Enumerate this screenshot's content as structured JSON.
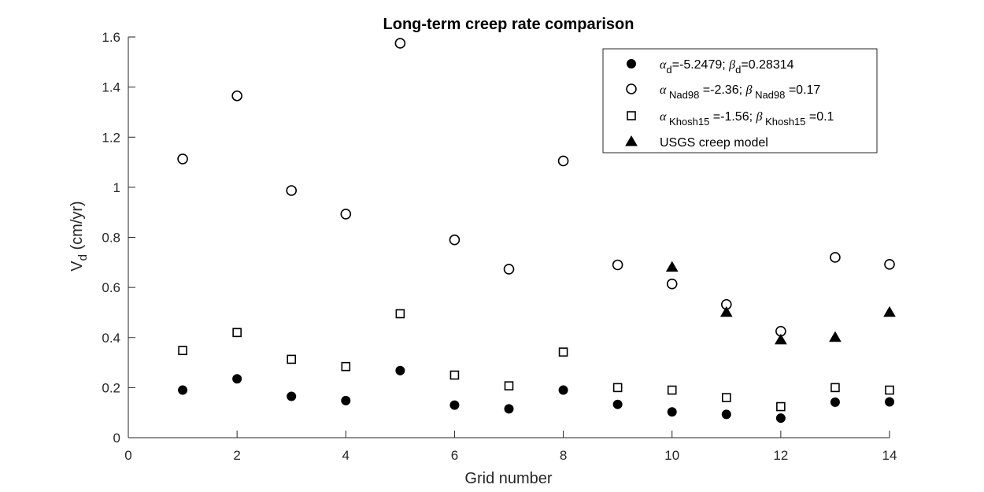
{
  "chart_data": {
    "type": "scatter",
    "title": "Long-term creep rate comparison",
    "xlabel": "Grid number",
    "ylabel": {
      "main": "V",
      "sub": "d",
      "suffix": " (cm/yr)"
    },
    "xlim": [
      0,
      14
    ],
    "ylim": [
      0,
      1.6
    ],
    "xticks": [
      0,
      2,
      4,
      6,
      8,
      10,
      12,
      14
    ],
    "yticks": [
      0,
      0.2,
      0.4,
      0.6,
      0.8,
      1,
      1.2,
      1.4,
      1.6
    ],
    "xtick_labels": [
      "0",
      "2",
      "4",
      "6",
      "8",
      "10",
      "12",
      "14"
    ],
    "ytick_labels": [
      "0",
      "0.2",
      "0.4",
      "0.6",
      "0.8",
      "1",
      "1.2",
      "1.4",
      "1.6"
    ],
    "grid": false,
    "legend_position": "top-right",
    "series": [
      {
        "name": "αd=-5.2479; βd=0.28314",
        "legend_parts": [
          {
            "t": "α",
            "style": "greek"
          },
          {
            "t": "d",
            "style": "sub"
          },
          {
            "t": "=-5.2479; ",
            "style": "normal"
          },
          {
            "t": "β",
            "style": "greek"
          },
          {
            "t": "d",
            "style": "sub"
          },
          {
            "t": "=0.28314",
            "style": "normal"
          }
        ],
        "marker": "filled-circle",
        "x": [
          1,
          2,
          3,
          4,
          5,
          6,
          7,
          8,
          9,
          10,
          11,
          12,
          13,
          14
        ],
        "y": [
          0.19,
          0.235,
          0.165,
          0.148,
          0.268,
          0.13,
          0.115,
          0.19,
          0.133,
          0.103,
          0.093,
          0.078,
          0.142,
          0.143
        ]
      },
      {
        "name": "α Nad98 =-2.36; β Nad98 =0.17",
        "legend_parts": [
          {
            "t": "α",
            "style": "greek"
          },
          {
            "t": " Nad98",
            "style": "sub"
          },
          {
            "t": " =-2.36; ",
            "style": "normal"
          },
          {
            "t": "β",
            "style": "greek"
          },
          {
            "t": " Nad98",
            "style": "sub"
          },
          {
            "t": " =0.17",
            "style": "normal"
          }
        ],
        "marker": "open-circle",
        "x": [
          1,
          2,
          3,
          4,
          5,
          6,
          7,
          8,
          9,
          10,
          11,
          12,
          13,
          14
        ],
        "y": [
          1.113,
          1.365,
          0.987,
          0.893,
          1.575,
          0.79,
          0.673,
          1.105,
          0.69,
          0.614,
          0.532,
          0.425,
          0.72,
          0.692
        ]
      },
      {
        "name": "α Khosh15 =-1.56; β Khosh15 =0.1",
        "legend_parts": [
          {
            "t": "α",
            "style": "greek"
          },
          {
            "t": " Khosh15",
            "style": "sub"
          },
          {
            "t": " =-1.56; ",
            "style": "normal"
          },
          {
            "t": "β",
            "style": "greek"
          },
          {
            "t": " Khosh15",
            "style": "sub"
          },
          {
            "t": " =0.1",
            "style": "normal"
          }
        ],
        "marker": "open-square",
        "x": [
          1,
          2,
          3,
          4,
          5,
          6,
          7,
          8,
          9,
          10,
          11,
          12,
          13,
          14
        ],
        "y": [
          0.348,
          0.42,
          0.313,
          0.284,
          0.495,
          0.25,
          0.207,
          0.342,
          0.2,
          0.19,
          0.16,
          0.124,
          0.2,
          0.19
        ]
      },
      {
        "name": "USGS creep model",
        "legend_parts": [
          {
            "t": "USGS creep model",
            "style": "sans"
          }
        ],
        "marker": "filled-triangle",
        "x": [
          10,
          11,
          12,
          13,
          14
        ],
        "y": [
          0.68,
          0.5,
          0.39,
          0.4,
          0.5
        ]
      }
    ]
  }
}
